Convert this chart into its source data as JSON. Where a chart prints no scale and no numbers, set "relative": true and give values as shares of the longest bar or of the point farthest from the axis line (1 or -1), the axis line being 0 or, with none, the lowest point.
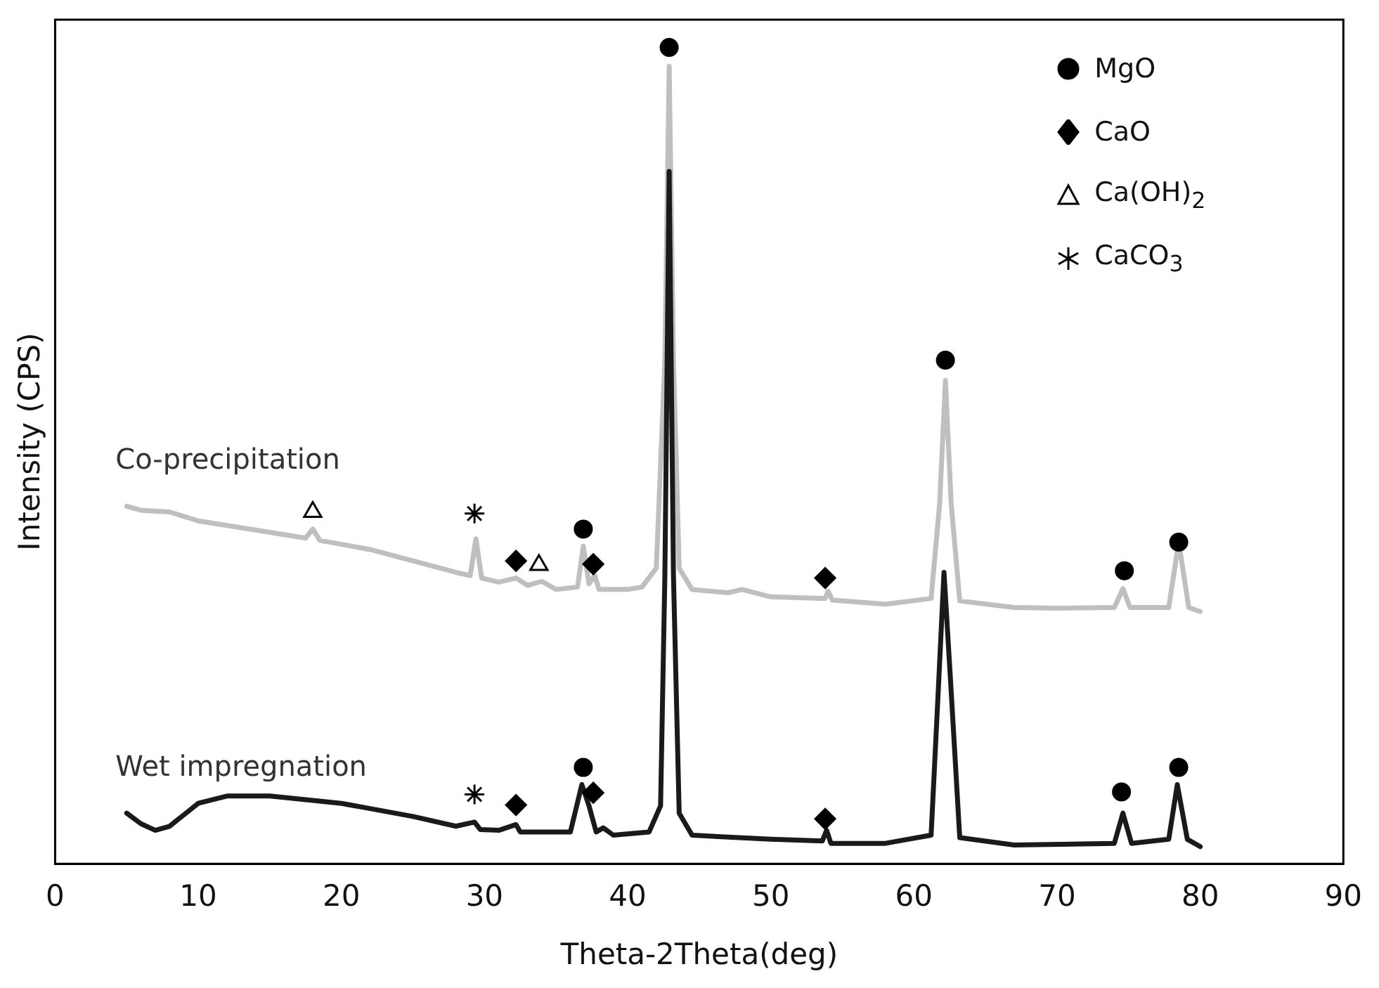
{
  "chart_data": {
    "type": "line",
    "relative": true,
    "xlabel": "Theta-2Theta(deg)",
    "ylabel": "Intensity (CPS)",
    "xlim": [
      0,
      90
    ],
    "xticks": [
      0,
      10,
      20,
      30,
      40,
      50,
      60,
      70,
      80,
      90
    ],
    "grid": false,
    "legend": "top right",
    "tick_labels": "x",
    "annotations": [
      {
        "text": "Co-precipitation",
        "x": 5,
        "y": 0.438
      },
      {
        "text": "Wet impregnation",
        "x": 5,
        "y": 0.062
      }
    ],
    "series": [
      {
        "marker": "none",
        "color": "#bfbfbf",
        "x": [
          5,
          6,
          8,
          10,
          15,
          17.5,
          18,
          18.5,
          22,
          25,
          28,
          29,
          29.4,
          29.8,
          31,
          32.2,
          33,
          34,
          35,
          36.5,
          36.9,
          37.3,
          37.7,
          38,
          40,
          41,
          42,
          42.6,
          42.9,
          43.2,
          43.6,
          44.5,
          47,
          48,
          50,
          53.8,
          54,
          54.3,
          58,
          61.2,
          61.8,
          62.2,
          62.6,
          63.2,
          67,
          70,
          74,
          74.6,
          75.1,
          77.8,
          78.5,
          79.2,
          80
        ],
        "values": [
          0.438,
          0.433,
          0.431,
          0.42,
          0.406,
          0.399,
          0.41,
          0.396,
          0.385,
          0.371,
          0.357,
          0.353,
          0.398,
          0.35,
          0.345,
          0.35,
          0.341,
          0.346,
          0.336,
          0.339,
          0.389,
          0.343,
          0.353,
          0.336,
          0.336,
          0.339,
          0.362,
          0.618,
          0.977,
          0.618,
          0.362,
          0.336,
          0.332,
          0.336,
          0.327,
          0.325,
          0.334,
          0.323,
          0.318,
          0.325,
          0.442,
          0.592,
          0.442,
          0.322,
          0.314,
          0.313,
          0.314,
          0.337,
          0.314,
          0.314,
          0.394,
          0.314,
          0.309
        ]
      },
      {
        "marker": "none",
        "color": "#1a1a1a",
        "x": [
          5,
          6,
          7,
          8,
          10,
          12,
          15,
          20,
          25,
          28,
          29.3,
          29.7,
          31,
          32.2,
          32.5,
          36,
          36.8,
          37.3,
          37.8,
          38.3,
          39,
          41.5,
          42.3,
          42.6,
          42.9,
          43.2,
          43.6,
          44.5,
          50,
          53.6,
          53.9,
          54.2,
          58,
          61.2,
          61.7,
          62.1,
          62.6,
          63.2,
          67,
          74,
          74.6,
          75.2,
          77.8,
          78.4,
          79.1,
          80
        ],
        "values": [
          0.062,
          0.049,
          0.041,
          0.046,
          0.074,
          0.083,
          0.083,
          0.074,
          0.058,
          0.046,
          0.051,
          0.042,
          0.041,
          0.048,
          0.039,
          0.039,
          0.097,
          0.071,
          0.039,
          0.044,
          0.035,
          0.039,
          0.071,
          0.353,
          0.848,
          0.353,
          0.062,
          0.035,
          0.03,
          0.028,
          0.041,
          0.025,
          0.025,
          0.035,
          0.212,
          0.357,
          0.212,
          0.032,
          0.023,
          0.025,
          0.062,
          0.025,
          0.03,
          0.097,
          0.03,
          0.021
        ]
      },
      {
        "name": "MgO",
        "type": "scatter",
        "marker": "circle",
        "color": "#000000",
        "x": [
          42.9,
          62.2,
          36.9,
          74.7,
          78.5,
          36.9,
          74.5,
          78.5
        ],
        "values": [
          1,
          0.617,
          0.41,
          0.359,
          0.394,
          0.118,
          0.088,
          0.118
        ]
      },
      {
        "name": "CaO",
        "type": "scatter",
        "marker": "diamond",
        "color": "#000000",
        "x": [
          32.2,
          37.6,
          53.8,
          32.2,
          37.6,
          53.8
        ],
        "values": [
          0.371,
          0.367,
          0.35,
          0.072,
          0.087,
          0.055
        ]
      },
      {
        "name": "Ca(OH)$_{2}$",
        "type": "scatter",
        "marker": "triangle",
        "color": "#000000",
        "x": [
          18,
          33.8
        ],
        "values": [
          0.431,
          0.366
        ]
      },
      {
        "name": "CaCO$_{3}$",
        "type": "scatter",
        "marker": "cross",
        "color": "#000000",
        "x": [
          29.3,
          29.3
        ],
        "values": [
          0.429,
          0.085
        ]
      }
    ]
  }
}
